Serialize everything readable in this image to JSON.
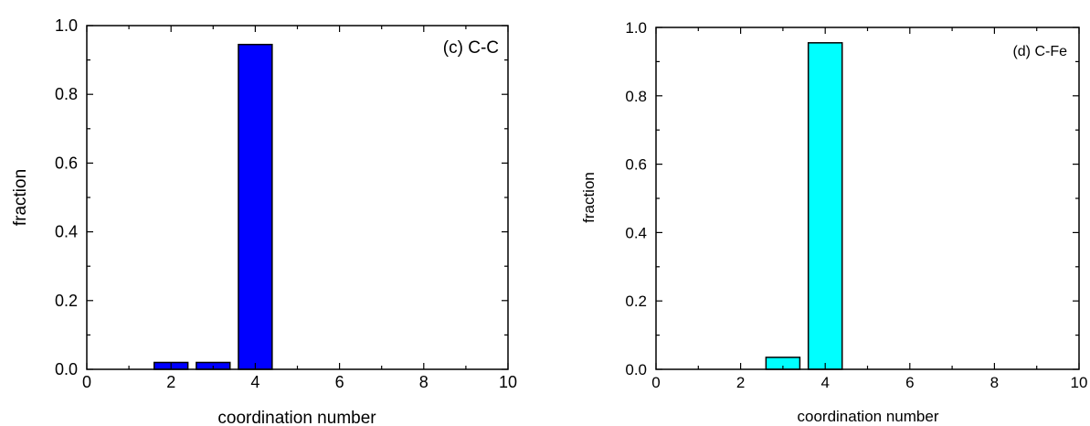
{
  "chart_data": [
    {
      "type": "bar",
      "annotation": "(c) C-C",
      "xlabel": "coordination number",
      "ylabel": "fraction",
      "xlim": [
        0,
        10
      ],
      "ylim": [
        0,
        1.0
      ],
      "x_ticks": [
        "0",
        "2",
        "4",
        "6",
        "8",
        "10"
      ],
      "y_ticks": [
        "0.0",
        "0.2",
        "0.4",
        "0.6",
        "0.8",
        "1.0"
      ],
      "bar_color": "#0000ff",
      "bar_width": 0.8,
      "x": [
        2,
        3,
        4
      ],
      "values": [
        0.02,
        0.02,
        0.945
      ]
    },
    {
      "type": "bar",
      "annotation": "(d) C-Fe",
      "xlabel": "coordination number",
      "ylabel": "fraction",
      "xlim": [
        0,
        10
      ],
      "ylim": [
        0,
        1.0
      ],
      "x_ticks": [
        "0",
        "2",
        "4",
        "6",
        "8",
        "10"
      ],
      "y_ticks": [
        "0.0",
        "0.2",
        "0.4",
        "0.6",
        "0.8",
        "1.0"
      ],
      "bar_color": "#00ffff",
      "bar_width": 0.8,
      "x": [
        3,
        4
      ],
      "values": [
        0.035,
        0.955
      ]
    }
  ]
}
